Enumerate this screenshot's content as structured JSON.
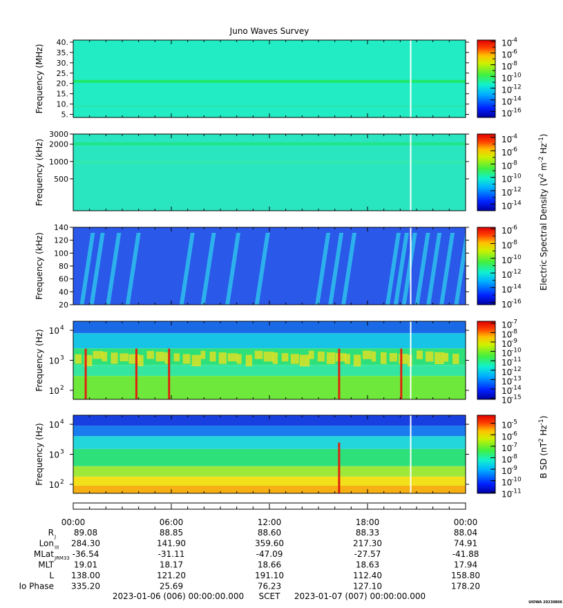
{
  "title": "Juno Waves Survey",
  "footer": {
    "start": "2023-01-06 (006) 00:00:00.000",
    "scet": "SCET",
    "end": "2023-01-07 (007) 00:00:00.000",
    "credit": "UIOWA 20230806"
  },
  "chart_data": [
    {
      "type": "heatmap",
      "name": "panel-1",
      "ylabel": "Frequency (MHz)",
      "y_scale": "linear",
      "ylim": [
        3.5,
        41
      ],
      "y_ticks": [
        {
          "v": 5,
          "label": "5."
        },
        {
          "v": 10,
          "label": "10."
        },
        {
          "v": 15,
          "label": "15."
        },
        {
          "v": 20,
          "label": "20."
        },
        {
          "v": 25,
          "label": "25."
        },
        {
          "v": 30,
          "label": "30."
        },
        {
          "v": 35,
          "label": "35."
        },
        {
          "v": 40,
          "label": "40."
        }
      ],
      "colorbar": {
        "labels": [
          {
            "exp": "-4",
            "v": -4
          },
          {
            "exp": "-6",
            "v": -6
          },
          {
            "exp": "-8",
            "v": -8
          },
          {
            "exp": "-10",
            "v": -10
          },
          {
            "exp": "-12",
            "v": -12
          },
          {
            "exp": "-14",
            "v": -14
          },
          {
            "exp": "-16",
            "v": -16
          }
        ],
        "range": [
          -17,
          -3.8
        ]
      },
      "background": "#22ecc4",
      "bands": [
        {
          "y0": 20.3,
          "y1": 21.7,
          "color": "#1fe86a"
        },
        {
          "y0": 8.6,
          "y1": 9.3,
          "color": "#2ee3b0"
        }
      ],
      "gap_hour": 20.6
    },
    {
      "type": "heatmap",
      "name": "panel-2",
      "ylabel": "Frequency (kHz)",
      "y_scale": "log",
      "ylim": [
        140,
        3000
      ],
      "y_ticks": [
        {
          "v": 500,
          "label": "500"
        },
        {
          "v": 1000,
          "label": "1000"
        },
        {
          "v": 2000,
          "label": "2000"
        },
        {
          "v": 3000,
          "label": "3000"
        }
      ],
      "colorbar": {
        "labels": [
          {
            "exp": "-4",
            "v": -4
          },
          {
            "exp": "-6",
            "v": -6
          },
          {
            "exp": "-8",
            "v": -8
          },
          {
            "exp": "-10",
            "v": -10
          },
          {
            "exp": "-12",
            "v": -12
          },
          {
            "exp": "-14",
            "v": -14
          }
        ],
        "range": [
          -15,
          -3.5
        ]
      },
      "background": "#2ae6c0",
      "bands": [
        {
          "y0": 1900,
          "y1": 2150,
          "color": "#22e48a"
        },
        {
          "y0": 900,
          "y1": 1050,
          "color": "#30e8b4"
        }
      ],
      "gap_hour": 20.6
    },
    {
      "type": "heatmap",
      "name": "panel-3",
      "ylabel": "Frequency (kHz)",
      "y_scale": "linear",
      "ylim": [
        20,
        140
      ],
      "y_ticks": [
        {
          "v": 20,
          "label": "20"
        },
        {
          "v": 40,
          "label": "40"
        },
        {
          "v": 60,
          "label": "60"
        },
        {
          "v": 80,
          "label": "80"
        },
        {
          "v": 100,
          "label": "100"
        },
        {
          "v": 120,
          "label": "120"
        },
        {
          "v": 140,
          "label": "140"
        }
      ],
      "colorbar": {
        "labels": [
          {
            "exp": "-6",
            "v": -6
          },
          {
            "exp": "-8",
            "v": -8
          },
          {
            "exp": "-10",
            "v": -10
          },
          {
            "exp": "-12",
            "v": -12
          },
          {
            "exp": "-14",
            "v": -14
          },
          {
            "exp": "-16",
            "v": -16
          }
        ],
        "range": [
          -16.3,
          -5.8
        ]
      },
      "background": "#2a58e8",
      "bursts_hours": [
        0.4,
        1.0,
        2.0,
        3.2,
        6.5,
        7.8,
        9.3,
        11.1,
        14.8,
        15.6,
        16.4,
        19.1,
        19.6,
        20.1,
        20.9,
        21.6,
        22.4,
        23.3
      ],
      "gap_hour": 20.6
    },
    {
      "type": "heatmap",
      "name": "panel-4",
      "ylabel": "Frequency (Hz)",
      "y_scale": "log",
      "ylim": [
        50,
        20000
      ],
      "y_ticks": [
        {
          "v": 100,
          "exp": "2"
        },
        {
          "v": 1000,
          "exp": "3"
        },
        {
          "v": 10000,
          "exp": "4"
        }
      ],
      "colorbar": {
        "labels": [
          {
            "exp": "-7",
            "v": -7
          },
          {
            "exp": "-8",
            "v": -8
          },
          {
            "exp": "-9",
            "v": -9
          },
          {
            "exp": "-10",
            "v": -10
          },
          {
            "exp": "-11",
            "v": -11
          },
          {
            "exp": "-12",
            "v": -12
          },
          {
            "exp": "-13",
            "v": -13
          },
          {
            "exp": "-14",
            "v": -14
          },
          {
            "exp": "-15",
            "v": -15
          }
        ],
        "range": [
          -15.1,
          -6.8
        ]
      },
      "layers": [
        {
          "y0": 8000,
          "y1": 20000,
          "color": "#1a6ae8"
        },
        {
          "y0": 2500,
          "y1": 8000,
          "color": "#18c4e6"
        },
        {
          "y0": 700,
          "y1": 2500,
          "color": "#2ee07a"
        },
        {
          "y0": 300,
          "y1": 700,
          "color": "#34e6a0"
        },
        {
          "y0": 50,
          "y1": 300,
          "color": "#6ee83a"
        }
      ],
      "emission_band": {
        "y0": 700,
        "y1": 1800,
        "color": "#f2e21a"
      },
      "spikes_hours": [
        0.7,
        3.8,
        5.8,
        16.2,
        20.0
      ],
      "gap_hour": 20.6
    },
    {
      "type": "heatmap",
      "name": "panel-5",
      "ylabel": "Frequency (Hz)",
      "y_scale": "log",
      "ylim": [
        50,
        20000
      ],
      "y_ticks": [
        {
          "v": 100,
          "exp": "2"
        },
        {
          "v": 1000,
          "exp": "3"
        },
        {
          "v": 10000,
          "exp": "4"
        }
      ],
      "colorbar": {
        "labels": [
          {
            "exp": "-5",
            "v": -5
          },
          {
            "exp": "-6",
            "v": -6
          },
          {
            "exp": "-7",
            "v": -7
          },
          {
            "exp": "-8",
            "v": -8
          },
          {
            "exp": "-9",
            "v": -9
          },
          {
            "exp": "-10",
            "v": -10
          },
          {
            "exp": "-11",
            "v": -11
          }
        ],
        "range": [
          -11.1,
          -4.3
        ]
      },
      "layers": [
        {
          "y0": 9000,
          "y1": 20000,
          "color": "#1840e0"
        },
        {
          "y0": 4000,
          "y1": 9000,
          "color": "#1a7cee"
        },
        {
          "y0": 1500,
          "y1": 4000,
          "color": "#22d6dc"
        },
        {
          "y0": 400,
          "y1": 1500,
          "color": "#2ee07a"
        },
        {
          "y0": 180,
          "y1": 400,
          "color": "#9ee83a"
        },
        {
          "y0": 90,
          "y1": 180,
          "color": "#f2e01a"
        },
        {
          "y0": 50,
          "y1": 90,
          "color": "#f6b014"
        }
      ],
      "spikes_hours": [
        16.2
      ],
      "gap_hour": 20.6
    }
  ],
  "side_labels": {
    "electric_main": "Electric Spectral Density (V",
    "electric_sup1": "2",
    "electric_mid": " m",
    "electric_sup2": "-2",
    "electric_hz": " Hz",
    "electric_sup3": "-1",
    "electric_end": ")",
    "bsd_main": "B SD (nT",
    "bsd_sup1": "2",
    "bsd_hz": " Hz",
    "bsd_sup2": "-1",
    "bsd_end": ")"
  },
  "ephemeris": {
    "time_labels": [
      "00:00",
      "06:00",
      "12:00",
      "18:00",
      "00:00"
    ],
    "rows": [
      {
        "label": "R",
        "sub": "J",
        "values": [
          "89.08",
          "88.85",
          "88.60",
          "88.33",
          "88.04"
        ]
      },
      {
        "label": "Lon",
        "sub": "III",
        "values": [
          "284.30",
          "141.90",
          "359.60",
          "217.30",
          "74.91"
        ]
      },
      {
        "label": "MLat",
        "sub": "JRM33",
        "values": [
          "-36.54",
          "-31.11",
          "-47.09",
          "-27.57",
          "-41.88"
        ]
      },
      {
        "label": "MLT",
        "sub": "",
        "values": [
          "19.01",
          "18.17",
          "18.66",
          "18.63",
          "17.94"
        ]
      },
      {
        "label": "L",
        "sub": "",
        "values": [
          "138.00",
          "121.20",
          "191.10",
          "112.40",
          "158.80"
        ]
      },
      {
        "label": "Io Phase",
        "sub": "",
        "values": [
          "335.20",
          "25.69",
          "76.23",
          "127.10",
          "178.20"
        ]
      }
    ]
  },
  "colors": {
    "jet": [
      "#00007f",
      "#0000ff",
      "#007fff",
      "#00ffff",
      "#7fff7f",
      "#ffff00",
      "#ff7f00",
      "#ff0000",
      "#7f0000"
    ]
  }
}
